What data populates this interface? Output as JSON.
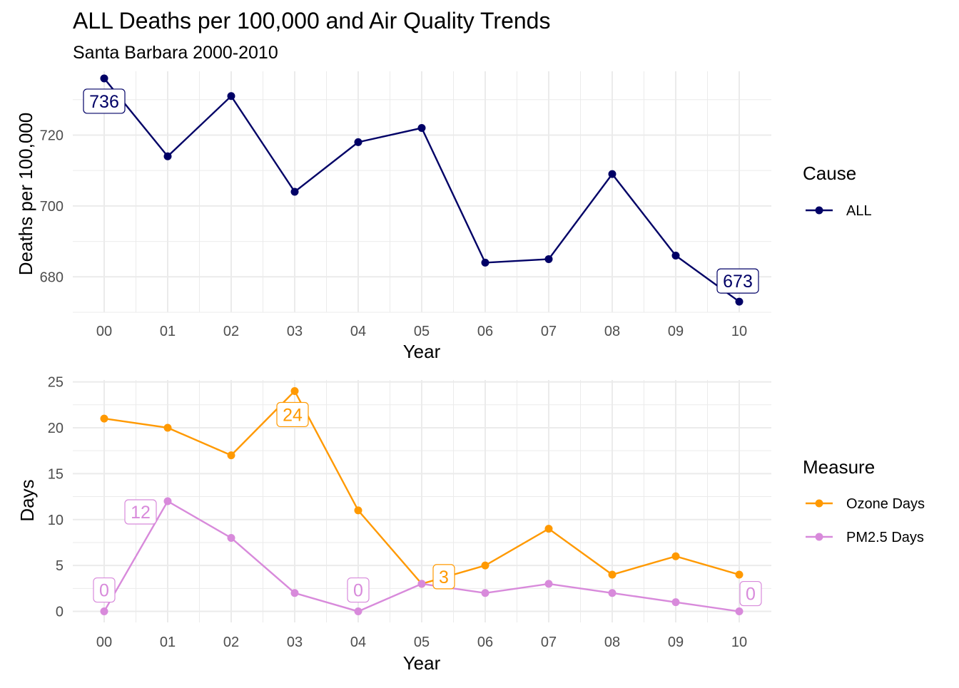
{
  "title": "ALL Deaths per 100,000 and Air Quality Trends",
  "subtitle": "Santa Barbara 2000-2010",
  "chart_data": [
    {
      "type": "line",
      "xlabel": "Year",
      "ylabel": "Deaths per 100,000",
      "categories": [
        "00",
        "01",
        "02",
        "03",
        "04",
        "05",
        "06",
        "07",
        "08",
        "09",
        "10"
      ],
      "ylim": [
        670,
        738
      ],
      "yticks": [
        680,
        700,
        720
      ],
      "grid": true,
      "legend": {
        "title": "Cause",
        "position": "right"
      },
      "series": [
        {
          "name": "ALL",
          "color": "#000066",
          "values": [
            736,
            714,
            731,
            704,
            718,
            722,
            684,
            685,
            709,
            686,
            673
          ]
        }
      ],
      "labels": [
        {
          "series": 0,
          "index": 0,
          "text": "736"
        },
        {
          "series": 0,
          "index": 10,
          "text": "673"
        }
      ]
    },
    {
      "type": "line",
      "xlabel": "Year",
      "ylabel": "Days",
      "categories": [
        "00",
        "01",
        "02",
        "03",
        "04",
        "05",
        "06",
        "07",
        "08",
        "09",
        "10"
      ],
      "ylim": [
        -1.2,
        25.2
      ],
      "yticks": [
        0,
        5,
        10,
        15,
        20,
        25
      ],
      "grid": true,
      "legend": {
        "title": "Measure",
        "position": "right"
      },
      "series": [
        {
          "name": "Ozone Days",
          "color": "#FF9900",
          "values": [
            21,
            20,
            17,
            24,
            11,
            3,
            5,
            9,
            4,
            6,
            4
          ]
        },
        {
          "name": "PM2.5 Days",
          "color": "#D88ADB",
          "values": [
            0,
            12,
            8,
            2,
            0,
            3,
            2,
            3,
            2,
            1,
            0
          ]
        }
      ],
      "labels": [
        {
          "series": 0,
          "index": 3,
          "text": "24"
        },
        {
          "series": 0,
          "index": 5,
          "text": "3"
        },
        {
          "series": 1,
          "index": 0,
          "text": "0"
        },
        {
          "series": 1,
          "index": 1,
          "text": "12"
        },
        {
          "series": 1,
          "index": 4,
          "text": "0"
        },
        {
          "series": 1,
          "index": 10,
          "text": "0"
        }
      ]
    }
  ]
}
